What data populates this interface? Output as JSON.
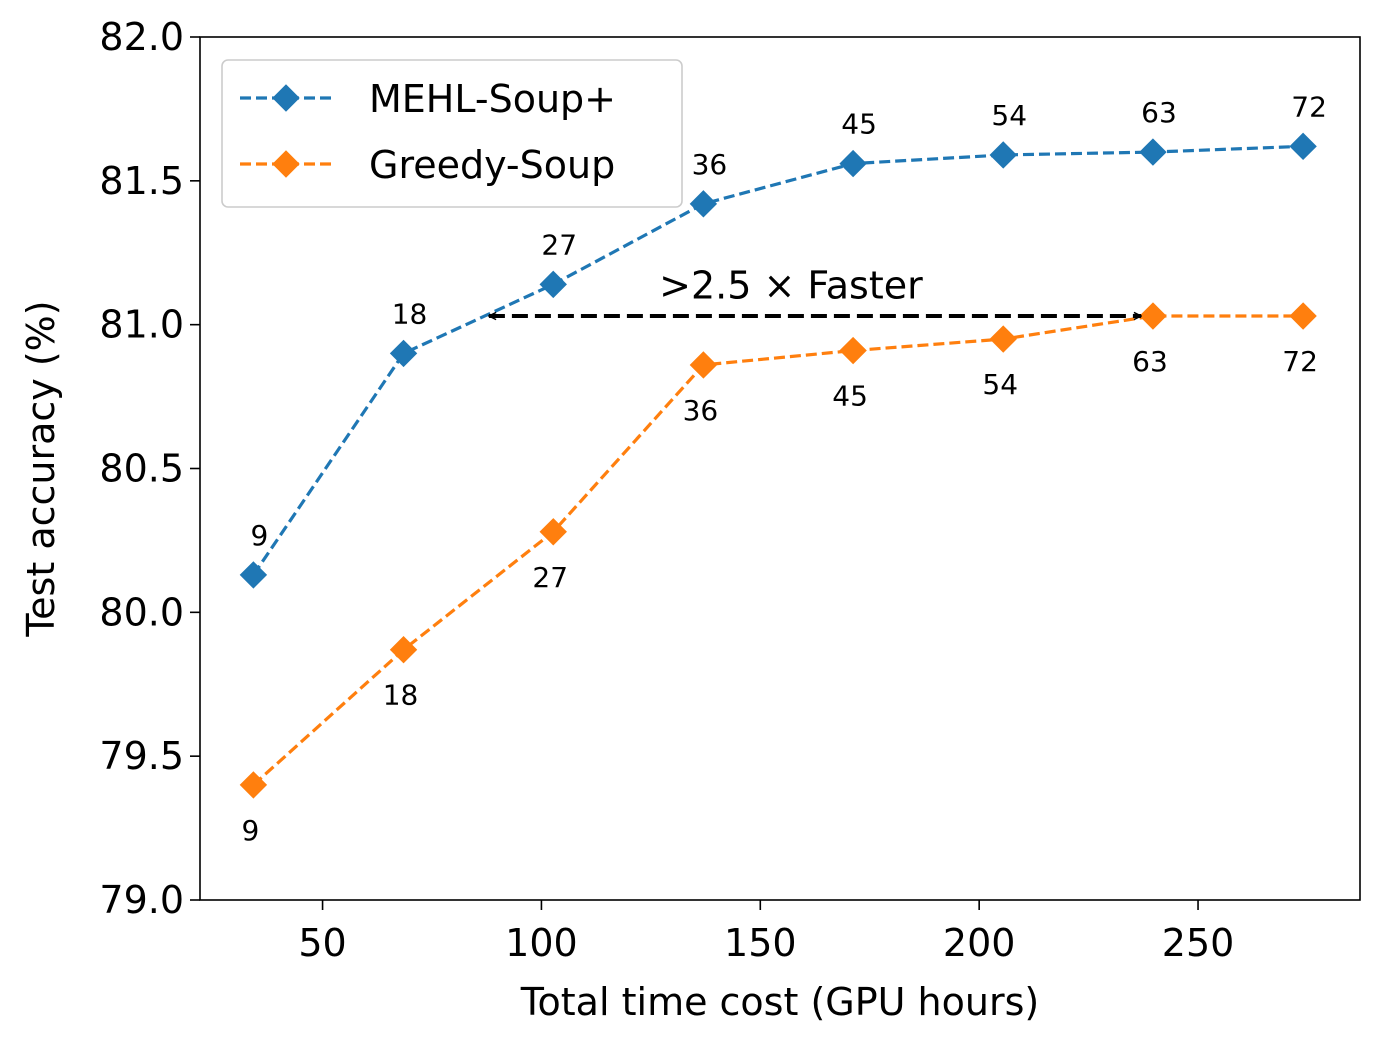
{
  "chart_data": {
    "type": "line",
    "xlabel": "Total time cost (GPU hours)",
    "ylabel": "Test accuracy (%)",
    "xlim": [
      22,
      287
    ],
    "ylim": [
      79.0,
      82.0
    ],
    "xticks": [
      50,
      100,
      150,
      200,
      250
    ],
    "yticks": [
      79.0,
      79.5,
      80.0,
      80.5,
      81.0,
      81.5,
      82.0
    ],
    "xtick_labels": [
      "50",
      "100",
      "150",
      "200",
      "250"
    ],
    "ytick_labels": [
      "79.0",
      "79.5",
      "80.0",
      "80.5",
      "81.0",
      "81.5",
      "82.0"
    ],
    "legend_position": "top-left",
    "grid": false,
    "series": [
      {
        "name": "MEHL-Soup+",
        "color": "#1f77b4",
        "marker": "diamond",
        "line_style": "dashed",
        "label_side": "above",
        "x": [
          34.2,
          68.5,
          102.7,
          137.0,
          171.2,
          205.5,
          239.7,
          274.0
        ],
        "y": [
          80.13,
          80.9,
          81.14,
          81.42,
          81.56,
          81.59,
          81.6,
          81.62
        ],
        "point_labels": [
          "9",
          "18",
          "27",
          "36",
          "45",
          "54",
          "63",
          "72"
        ]
      },
      {
        "name": "Greedy-Soup",
        "color": "#ff7f0e",
        "marker": "diamond",
        "line_style": "dashed",
        "label_side": "below",
        "x": [
          34.2,
          68.5,
          102.7,
          137.0,
          171.2,
          205.5,
          239.7,
          274.0
        ],
        "y": [
          79.4,
          79.87,
          80.28,
          80.86,
          80.91,
          80.95,
          81.03,
          81.03
        ],
        "point_labels": [
          "9",
          "18",
          "27",
          "36",
          "45",
          "54",
          "63",
          "72"
        ]
      }
    ],
    "annotations": [
      {
        "type": "double-arrow",
        "text": ">2.5 × Faster",
        "x_start": 88,
        "x_end": 237,
        "y": 81.03,
        "text_x": 157,
        "text_y": 81.13
      }
    ]
  }
}
